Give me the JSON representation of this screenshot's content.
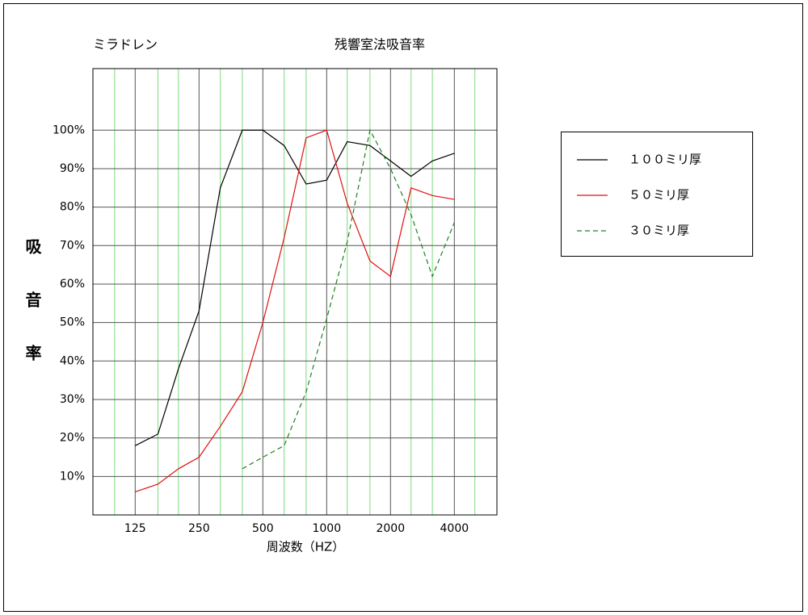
{
  "chart_data": {
    "type": "line",
    "title": "残響室法吸音率",
    "subtitle": "ミラドレン",
    "y_label": "吸音率",
    "x_label": "周波数（HZ）",
    "log_x": true,
    "x": [
      125,
      160,
      200,
      250,
      315,
      400,
      500,
      630,
      800,
      1000,
      1250,
      1600,
      2000,
      2500,
      3150,
      4000
    ],
    "series": [
      {
        "name": "１００ミリ厚",
        "color": "#000000",
        "dash": "solid",
        "values": [
          18,
          21,
          38,
          53,
          85,
          100,
          100,
          96,
          86,
          87,
          97,
          96,
          92,
          88,
          92,
          94
        ]
      },
      {
        "name": "５０ミリ厚",
        "color": "#e01010",
        "dash": "solid",
        "values": [
          6,
          8,
          12,
          15,
          23,
          32,
          50,
          72,
          98,
          100,
          81,
          66,
          62,
          85,
          83,
          82
        ]
      },
      {
        "name": "３０ミリ厚",
        "color": "#208020",
        "dash": "dashed",
        "values": [
          null,
          null,
          null,
          null,
          null,
          12,
          15,
          18,
          32,
          51,
          71,
          100,
          90,
          78,
          62,
          76
        ]
      }
    ],
    "xlim": [
      79,
      6350
    ],
    "xticks": [
      125,
      250,
      500,
      1000,
      2000,
      4000
    ],
    "xminorticks": [
      100,
      160,
      200,
      315,
      400,
      630,
      800,
      1250,
      1600,
      2500,
      3150,
      5000
    ],
    "ylim": [
      0,
      116
    ],
    "yticks": [
      {
        "value": 10,
        "label": "10%"
      },
      {
        "value": 20,
        "label": "20%"
      },
      {
        "value": 30,
        "label": "30%"
      },
      {
        "value": 40,
        "label": "40%"
      },
      {
        "value": 50,
        "label": "50%"
      },
      {
        "value": 60,
        "label": "60%"
      },
      {
        "value": 70,
        "label": "70%"
      },
      {
        "value": 80,
        "label": "80%"
      },
      {
        "value": 90,
        "label": "90%"
      },
      {
        "value": 100,
        "label": "100%"
      }
    ],
    "grid": true,
    "grid_color": "#555555",
    "minor_grid_color": "#7ddc7d",
    "legend": "right"
  }
}
